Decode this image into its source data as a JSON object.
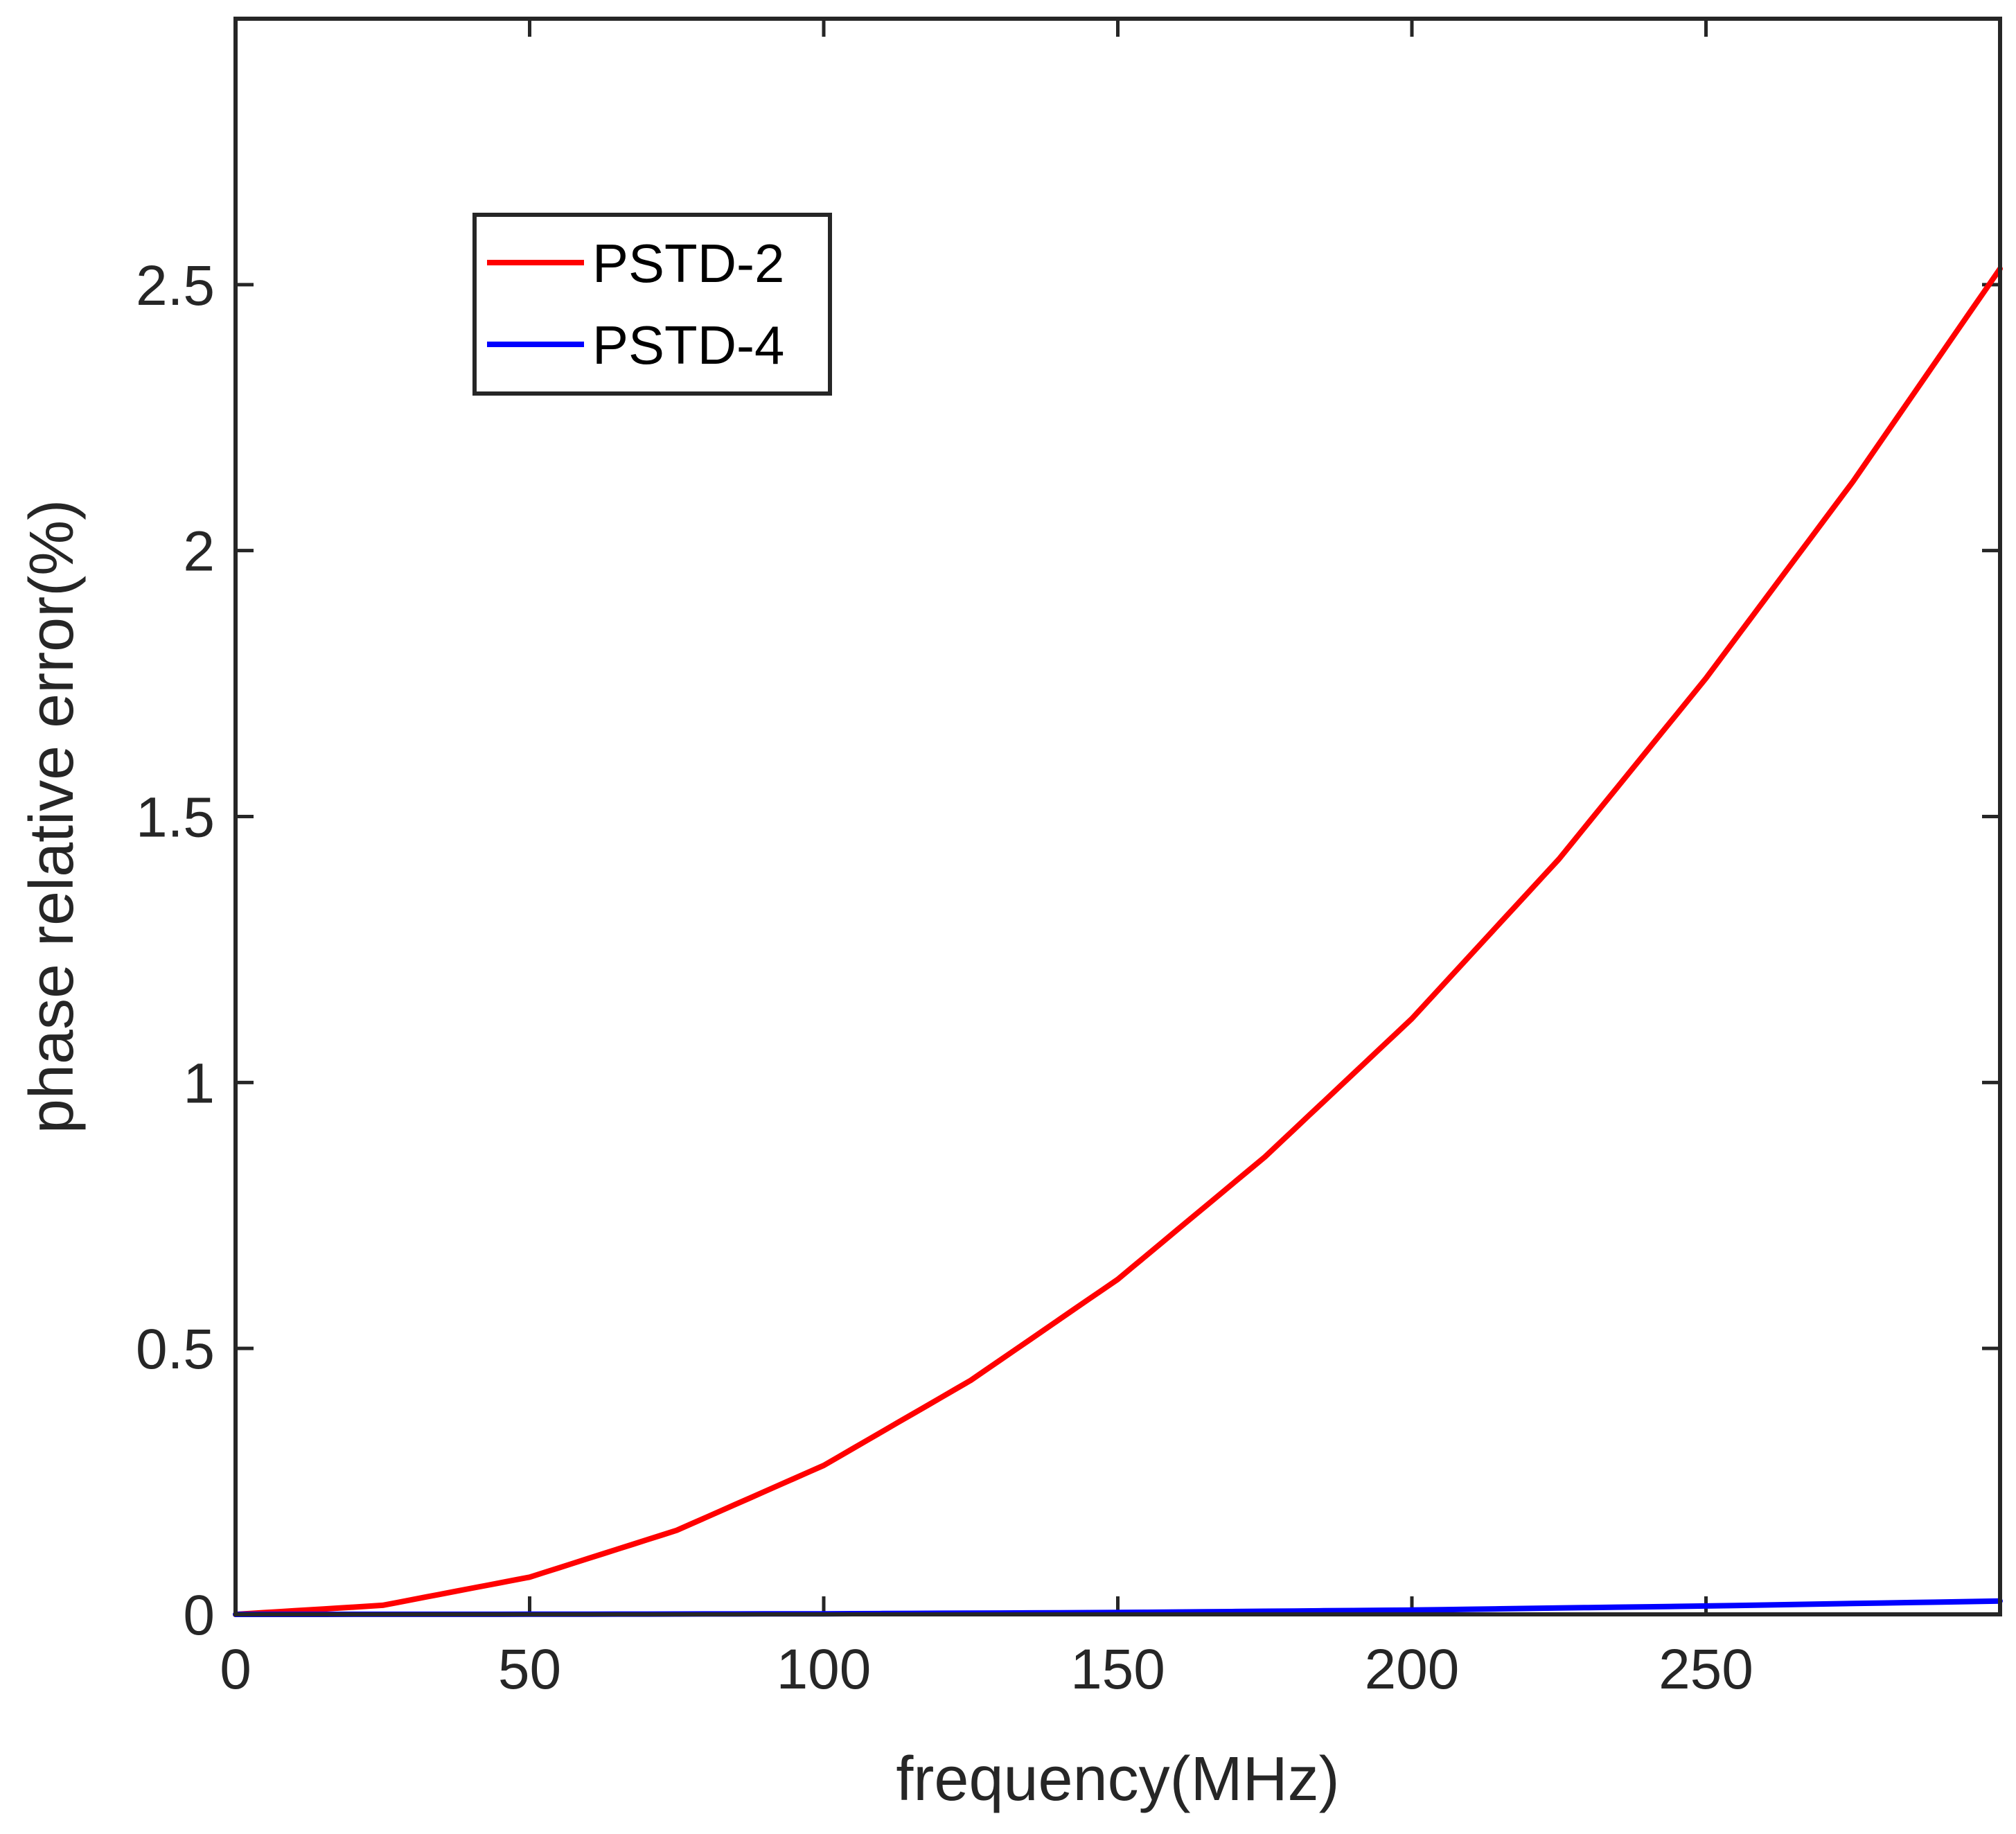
{
  "colors": {
    "background": "#ffffff",
    "axes": "#262626",
    "pstd2": "#ff0000",
    "pstd4": "#0000ff"
  },
  "chart_data": {
    "type": "line",
    "title": "",
    "xlabel": "frequency(MHz)",
    "ylabel": "phase relative error(%)",
    "xlim": [
      0,
      300
    ],
    "ylim": [
      0,
      3
    ],
    "xticks": [
      0,
      50,
      100,
      150,
      200,
      250
    ],
    "yticks": [
      0,
      0.5,
      1,
      1.5,
      2,
      2.5
    ],
    "xtick_labels": [
      "0",
      "50",
      "100",
      "150",
      "200",
      "250"
    ],
    "ytick_labels": [
      "0",
      "0.5",
      "1",
      "1.5",
      "2",
      "2.5"
    ],
    "grid": false,
    "box": true,
    "legend_position": "top-left",
    "series": [
      {
        "name": "PSTD-2",
        "color": "#ff0000",
        "x": [
          0,
          25,
          50,
          75,
          100,
          125,
          150,
          175,
          200,
          225,
          250,
          275,
          300
        ],
        "y": [
          0,
          0.017,
          0.07,
          0.158,
          0.28,
          0.44,
          0.63,
          0.86,
          1.12,
          1.42,
          1.76,
          2.13,
          2.53
        ]
      },
      {
        "name": "PSTD-4",
        "color": "#0000ff",
        "x": [
          0,
          50,
          100,
          150,
          200,
          250,
          300
        ],
        "y": [
          0,
          0.0002,
          0.0011,
          0.0035,
          0.0081,
          0.0158,
          0.025
        ]
      }
    ]
  }
}
